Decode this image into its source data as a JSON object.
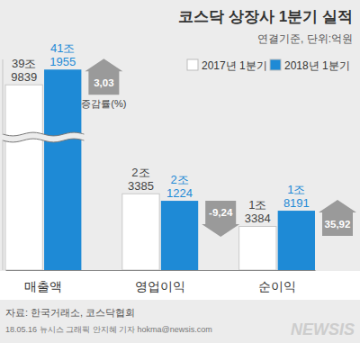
{
  "chart_data": {
    "type": "bar",
    "title": "코스닥 상장사 1분기 실적",
    "subtitle": "연결기준, 단위:억원",
    "categories": [
      "매출액",
      "영업이익",
      "순이익"
    ],
    "series": [
      {
        "name": "2017년 1분기",
        "color": "#ffffff",
        "values": [
          399839,
          23385,
          13384
        ],
        "value_labels": [
          "39조\n9839",
          "2조\n3385",
          "1조\n3384"
        ]
      },
      {
        "name": "2018년 1분기",
        "color": "#1e8ad6",
        "values": [
          411955,
          21224,
          18191
        ],
        "value_labels": [
          "41조\n1955",
          "2조\n1224",
          "1조\n8191"
        ]
      }
    ],
    "ylim": [
      0,
      420000
    ],
    "ybreak": [
      40000,
      360000
    ],
    "tick_labels": "x",
    "data_labels": true,
    "legend": "top-right",
    "change_rate": {
      "label": "증감률(%)",
      "values": [
        3.03,
        -9.24,
        35.92
      ],
      "value_labels": [
        "3,03",
        "-9,24",
        "35,92"
      ],
      "color": "#9a9a9a"
    },
    "source": "자료: 한국거래소, 코스닥협회",
    "credit": "18.05.16 뉴시스 그래픽 안지혜 기자 hokma@newsis.com",
    "watermark": "NEWSIS"
  }
}
